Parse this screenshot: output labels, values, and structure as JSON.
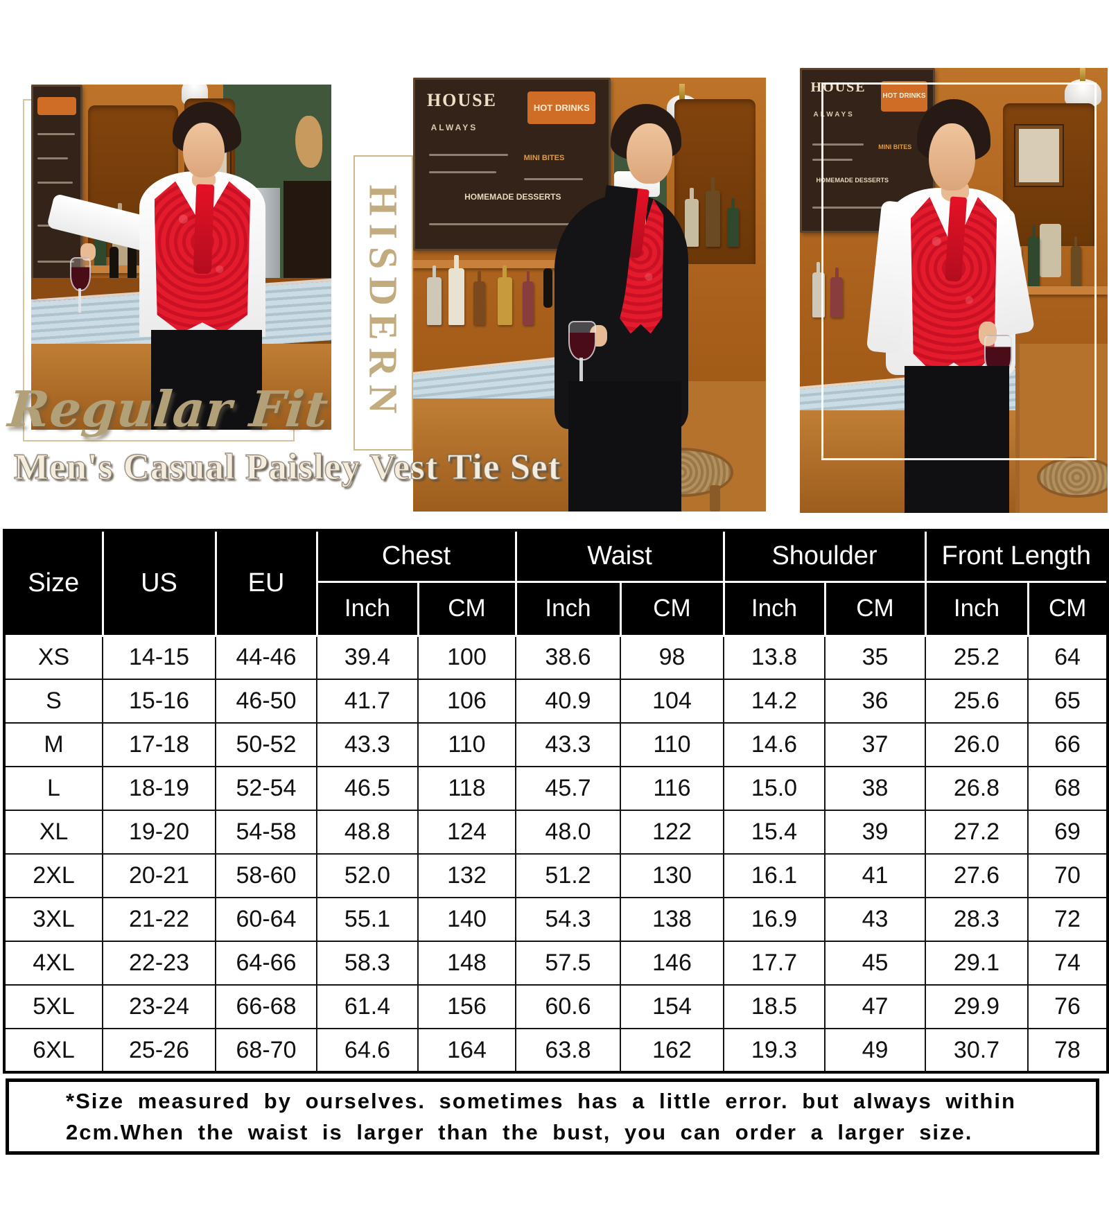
{
  "brand": "HISDERN",
  "overlay": {
    "fit_label": "Regular Fit",
    "product_title": "Men's Casual Paisley Vest Tie Set"
  },
  "menu_board": {
    "title": "HOUSE",
    "tagline": "ALWAYS",
    "chip": "HOT DRINKS",
    "dessert_line": "HOMEMADE DESSERTS",
    "bites_line": "MINI BITES"
  },
  "size_chart": {
    "base_headers": [
      "Size",
      "US",
      "EU"
    ],
    "groups": [
      "Chest",
      "Waist",
      "Shoulder",
      "Front Length"
    ],
    "units": [
      "Inch",
      "CM"
    ],
    "rows": [
      [
        "XS",
        "14-15",
        "44-46",
        "39.4",
        "100",
        "38.6",
        "98",
        "13.8",
        "35",
        "25.2",
        "64"
      ],
      [
        "S",
        "15-16",
        "46-50",
        "41.7",
        "106",
        "40.9",
        "104",
        "14.2",
        "36",
        "25.6",
        "65"
      ],
      [
        "M",
        "17-18",
        "50-52",
        "43.3",
        "110",
        "43.3",
        "110",
        "14.6",
        "37",
        "26.0",
        "66"
      ],
      [
        "L",
        "18-19",
        "52-54",
        "46.5",
        "118",
        "45.7",
        "116",
        "15.0",
        "38",
        "26.8",
        "68"
      ],
      [
        "XL",
        "19-20",
        "54-58",
        "48.8",
        "124",
        "48.0",
        "122",
        "15.4",
        "39",
        "27.2",
        "69"
      ],
      [
        "2XL",
        "20-21",
        "58-60",
        "52.0",
        "132",
        "51.2",
        "130",
        "16.1",
        "41",
        "27.6",
        "70"
      ],
      [
        "3XL",
        "21-22",
        "60-64",
        "55.1",
        "140",
        "54.3",
        "138",
        "16.9",
        "43",
        "28.3",
        "72"
      ],
      [
        "4XL",
        "22-23",
        "64-66",
        "58.3",
        "148",
        "57.5",
        "146",
        "17.7",
        "45",
        "29.1",
        "74"
      ],
      [
        "5XL",
        "23-24",
        "66-68",
        "61.4",
        "156",
        "60.6",
        "154",
        "18.5",
        "47",
        "29.9",
        "76"
      ],
      [
        "6XL",
        "25-26",
        "68-70",
        "64.6",
        "164",
        "63.8",
        "162",
        "19.3",
        "49",
        "30.7",
        "78"
      ]
    ]
  },
  "note": {
    "line1": "*Size measured by ourselves. sometimes has a little error. but always within",
    "line2": "2cm.When the waist is larger than the bust, you can order a larger size."
  },
  "colors": {
    "vest_red": "#e41a2d",
    "gold_script": "#b1a078",
    "brand_tan": "#c2ab7f",
    "table_header_bg": "#000000",
    "wood": "#a85f1c"
  }
}
